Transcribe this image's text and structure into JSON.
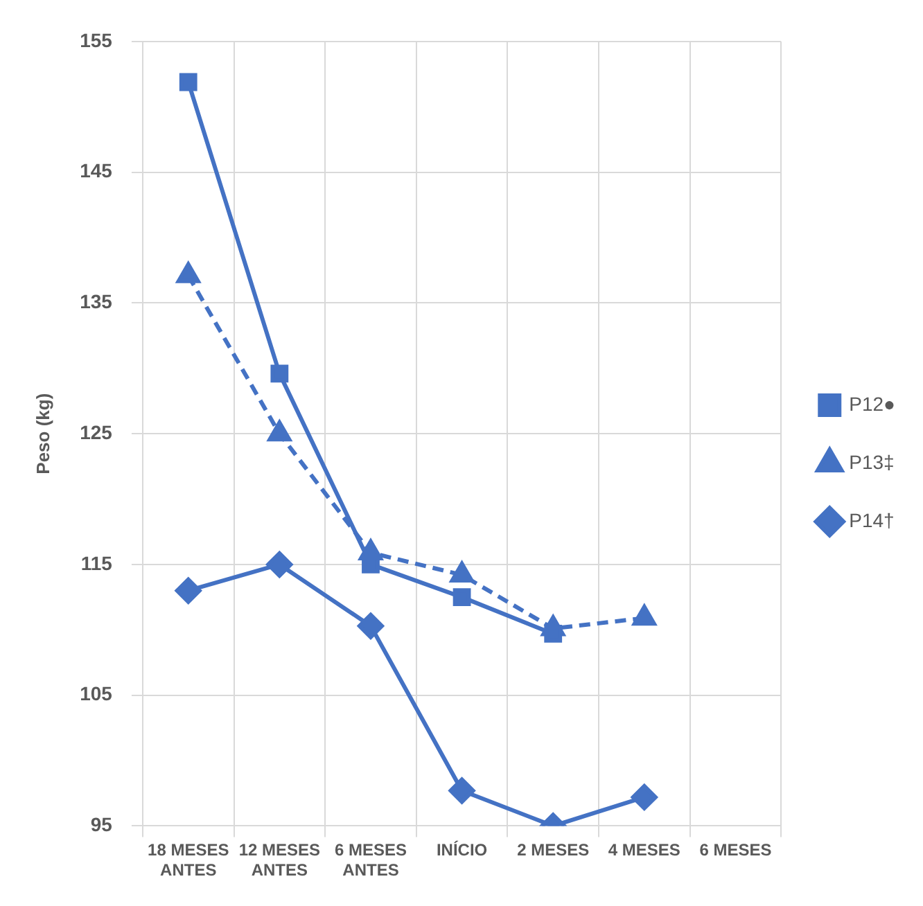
{
  "chart_data": {
    "type": "line",
    "ylabel": "Peso (kg)",
    "categories": [
      "18 MESES ANTES",
      "12 MESES ANTES",
      "6 MESES ANTES",
      "INÍCIO",
      "2 MESES",
      "4 MESES",
      "6 MESES"
    ],
    "series": [
      {
        "name": "P12●",
        "color": "#4472c4",
        "marker": "square",
        "line_style": "solid",
        "values": [
          151.9,
          129.6,
          115,
          112.5,
          109.7,
          null,
          null
        ]
      },
      {
        "name": "P13‡",
        "color": "#4472c4",
        "marker": "triangle",
        "line_style": "dashed",
        "values": [
          137.1,
          125,
          115.9,
          114.2,
          110.1,
          110.9,
          null
        ]
      },
      {
        "name": "P14†",
        "color": "#4472c4",
        "marker": "diamond",
        "line_style": "solid",
        "values": [
          113,
          115,
          110.3,
          97.7,
          95,
          97.2,
          null
        ]
      }
    ],
    "ylim": [
      95,
      155
    ],
    "yticks": [
      95,
      105,
      115,
      125,
      135,
      145,
      155
    ],
    "grid": true,
    "legend": "right"
  }
}
